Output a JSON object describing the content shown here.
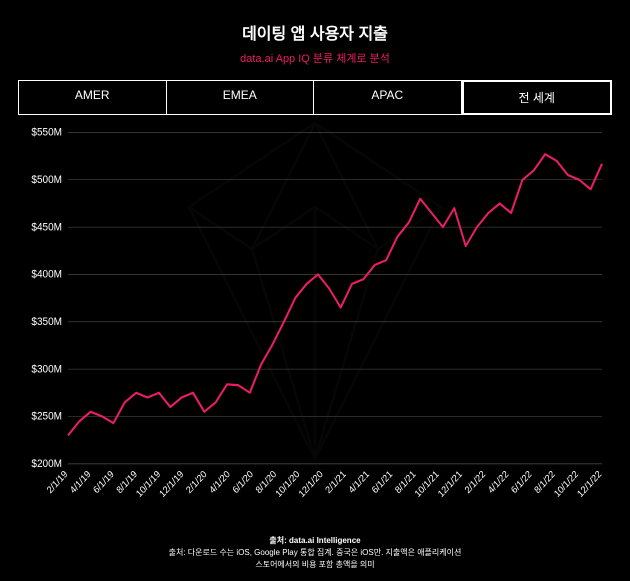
{
  "title": "데이팅 앱 사용자 지출",
  "subtitle": "data.ai App IQ 분류 체계로 분석",
  "subtitle_color": "#e91e63",
  "tabs": [
    {
      "label": "AMER",
      "active": false
    },
    {
      "label": "EMEA",
      "active": false
    },
    {
      "label": "APAC",
      "active": false
    },
    {
      "label": "전 세계",
      "active": true
    }
  ],
  "chart": {
    "type": "line",
    "background_color": "#000000",
    "text_color": "#ffffff",
    "grid_color": "#555555",
    "line_color": "#e91e63",
    "line_width": 2,
    "ylim": [
      200,
      550
    ],
    "ytick_step": 50,
    "ylabel_prefix": "$",
    "ylabel_suffix": "M",
    "x_labels": [
      "2/1/19",
      "4/1/19",
      "6/1/19",
      "8/1/19",
      "10/1/19",
      "12/1/19",
      "2/1/20",
      "4/1/20",
      "6/1/20",
      "8/1/20",
      "10/1/20",
      "12/1/20",
      "2/1/21",
      "4/1/21",
      "6/1/21",
      "8/1/21",
      "10/1/21",
      "12/1/21",
      "2/1/22",
      "4/1/22",
      "6/1/22",
      "8/1/22",
      "10/1/22",
      "12/1/22"
    ],
    "values": [
      230,
      245,
      255,
      250,
      243,
      265,
      275,
      270,
      275,
      260,
      270,
      275,
      255,
      265,
      284,
      283,
      275,
      305,
      326,
      350,
      375,
      390,
      400,
      385,
      365,
      390,
      395,
      410,
      415,
      440,
      455,
      480,
      465,
      450,
      470,
      430,
      450,
      465,
      475,
      465,
      500,
      510,
      527,
      520,
      505,
      500,
      490,
      517
    ],
    "tick_fontsize": 10
  },
  "footer": {
    "line1_bold": "출처: data.ai Intelligence",
    "line2": "출처: 다운로드 수는 iOS, Google Play 통합 집계. 중국은 iOS만. 지출액은 애플리케이션",
    "line3": "스토어에서의 비용 포함 총액을 의미",
    "text_color": "#ffffff"
  },
  "decoration": {
    "stroke": "#222222"
  }
}
